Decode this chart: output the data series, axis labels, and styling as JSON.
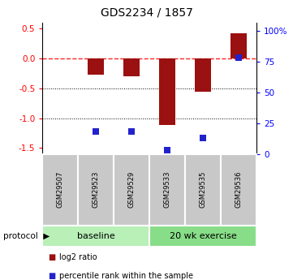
{
  "title": "GDS2234 / 1857",
  "samples": [
    "GSM29507",
    "GSM29523",
    "GSM29529",
    "GSM29533",
    "GSM29535",
    "GSM29536"
  ],
  "log2_ratio": [
    0.0,
    -0.27,
    -0.3,
    -1.12,
    -0.56,
    0.42
  ],
  "percentile_rank": [
    null,
    18,
    18,
    3,
    13,
    78
  ],
  "ylim_left": [
    -1.6,
    0.6
  ],
  "ylim_right": [
    0,
    106.67
  ],
  "yticks_left": [
    0.5,
    0.0,
    -0.5,
    -1.0,
    -1.5
  ],
  "yticks_right": [
    100,
    75,
    50,
    25,
    0
  ],
  "bar_color": "#9b1010",
  "dot_color": "#2222cc",
  "baseline_label": "baseline",
  "exercise_label": "20 wk exercise",
  "protocol_label": "protocol",
  "legend_red": "log2 ratio",
  "legend_blue": "percentile rank within the sample",
  "baseline_color": "#b8f0b8",
  "exercise_color": "#88dd88",
  "sample_box_color": "#c8c8c8",
  "sample_box_edge": "#aaaaaa"
}
